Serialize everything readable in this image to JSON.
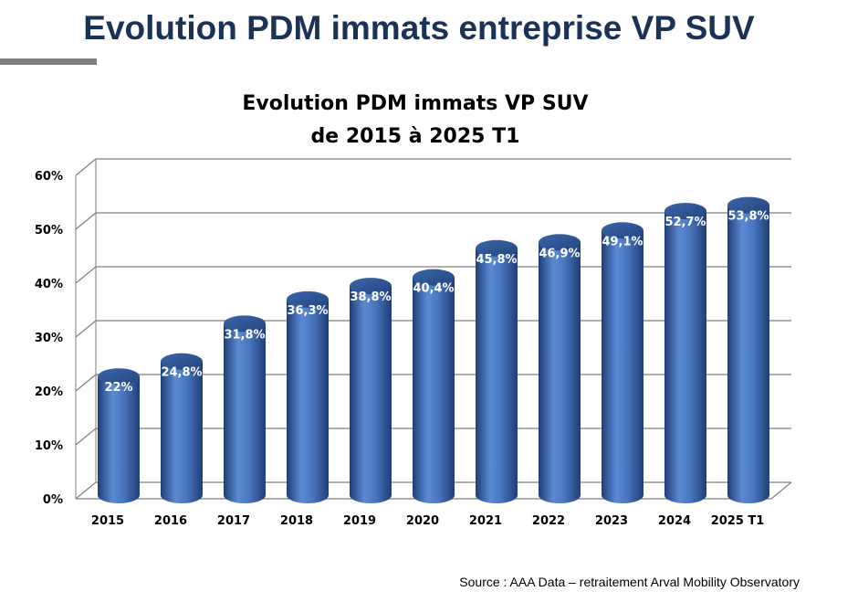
{
  "page": {
    "title": "Evolution PDM immats entreprise VP SUV",
    "source": "Source : AAA Data – retraitement Arval Mobility Observatory"
  },
  "colors": {
    "title": "#1b3257",
    "bar": "#4a78c0",
    "bar_dark": "#1f3e78",
    "grid": "#7f7f7f",
    "rule": "#808080"
  },
  "chart_data": {
    "type": "bar",
    "title_line1": "Evolution PDM immats VP SUV",
    "title_line2": "de 2015 à 2025 T1",
    "categories": [
      "2015",
      "2016",
      "2017",
      "2018",
      "2019",
      "2020",
      "2021",
      "2022",
      "2023",
      "2024",
      "2025 T1"
    ],
    "values": [
      22,
      24.8,
      31.8,
      36.3,
      38.8,
      40.4,
      45.8,
      46.9,
      49.1,
      52.7,
      53.8
    ],
    "data_labels": [
      "22%",
      "24,8%",
      "31,8%",
      "36,3%",
      "38,8%",
      "40,4%",
      "45,8%",
      "46,9%",
      "49,1%",
      "52,7%",
      "53,8%"
    ],
    "y_ticks": [
      0,
      10,
      20,
      30,
      40,
      50,
      60
    ],
    "y_tick_labels": [
      "0%",
      "10%",
      "20%",
      "30%",
      "40%",
      "50%",
      "60%"
    ],
    "ylim": [
      0,
      60
    ],
    "grid": true,
    "legend": "none",
    "style": "3d-cylinder"
  }
}
